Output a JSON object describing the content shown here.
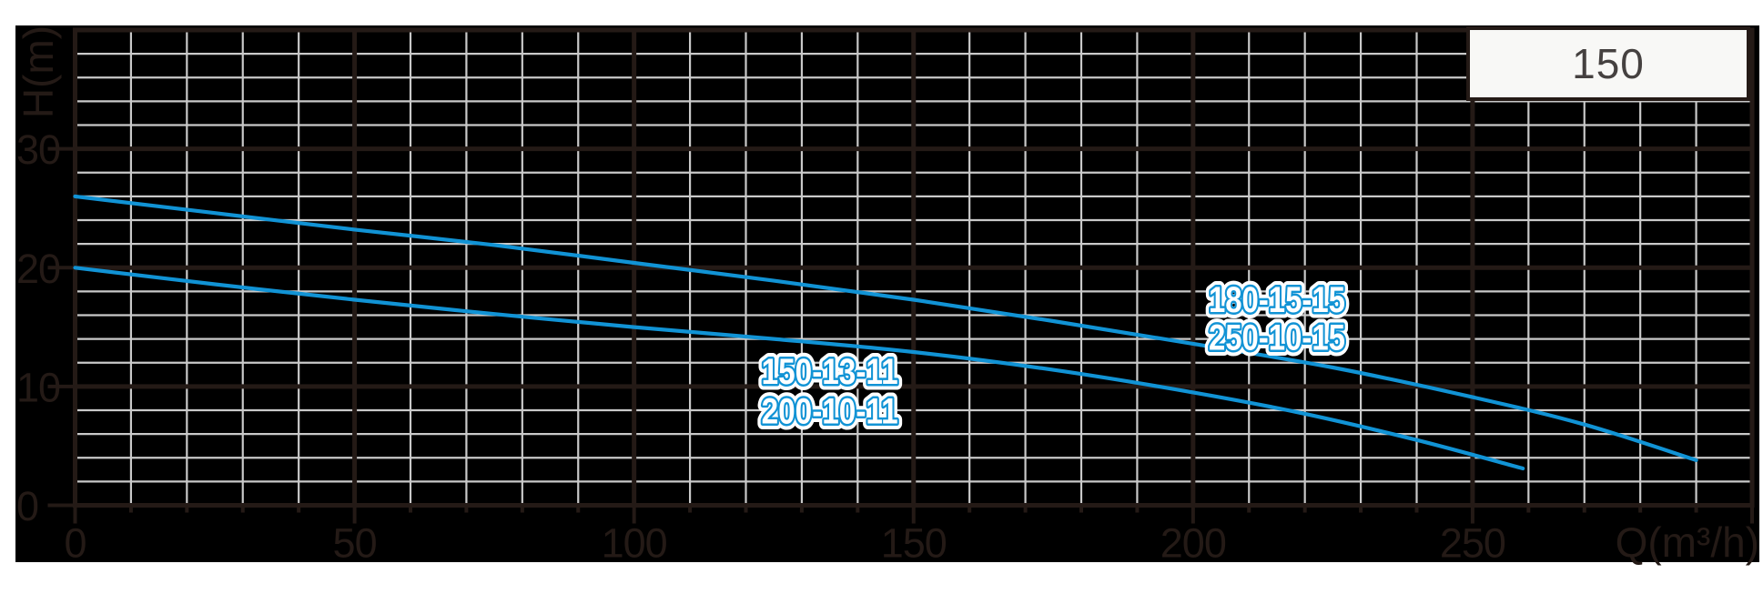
{
  "title_box": {
    "label": "150"
  },
  "axes": {
    "x": {
      "label": "Q(m³/h)",
      "tick_labels": [
        "0",
        "50",
        "100",
        "150",
        "200",
        "250"
      ],
      "tick_values": [
        0,
        50,
        100,
        150,
        200,
        250
      ],
      "range": [
        0,
        300
      ],
      "minor_step": 10,
      "major_step": 50
    },
    "y": {
      "label": "H(m)",
      "tick_labels": [
        "30",
        "20",
        "10",
        "0"
      ],
      "tick_values": [
        30,
        20,
        10,
        0
      ],
      "range": [
        0,
        40
      ],
      "minor_step": 2,
      "major_step": 10
    }
  },
  "chart_data": {
    "type": "line",
    "title": "",
    "xlabel": "Q(m³/h)",
    "ylabel": "H(m)",
    "xlim": [
      0,
      300
    ],
    "ylim": [
      0,
      40
    ],
    "grid": {
      "minor_x": 10,
      "minor_y": 2,
      "major_x": 50,
      "major_y": 10,
      "style": "grey minor grid and dark major grid on black panel"
    },
    "series": [
      {
        "name": "180-15-15 / 250-10-15",
        "models": [
          "180-15-15",
          "250-10-15"
        ],
        "points": [
          [
            0,
            26.0
          ],
          [
            25,
            24.6
          ],
          [
            50,
            23.2
          ],
          [
            75,
            21.9
          ],
          [
            100,
            20.4
          ],
          [
            125,
            18.9
          ],
          [
            150,
            17.3
          ],
          [
            175,
            15.5
          ],
          [
            200,
            13.6
          ],
          [
            225,
            11.6
          ],
          [
            250,
            9.1
          ],
          [
            270,
            6.8
          ],
          [
            290,
            3.8
          ]
        ]
      },
      {
        "name": "150-13-11 / 200-10-11",
        "models": [
          "150-13-11",
          "200-10-11"
        ],
        "points": [
          [
            0,
            20.0
          ],
          [
            25,
            18.6
          ],
          [
            50,
            17.3
          ],
          [
            75,
            16.1
          ],
          [
            100,
            15.0
          ],
          [
            125,
            14.0
          ],
          [
            150,
            12.9
          ],
          [
            175,
            11.4
          ],
          [
            200,
            9.5
          ],
          [
            220,
            7.7
          ],
          [
            240,
            5.5
          ],
          [
            259,
            3.1
          ]
        ]
      }
    ],
    "annotations": [
      {
        "q": 215,
        "lines": [
          {
            "text": "180-15-15",
            "h": 17.25
          },
          {
            "text": "250-10-15",
            "h": 14.1
          }
        ]
      },
      {
        "q": 135,
        "lines": [
          {
            "text": "150-13-11",
            "h": 11.2
          },
          {
            "text": "200-10-11",
            "h": 7.9
          }
        ]
      }
    ],
    "legend_position": "none"
  },
  "colors": {
    "background": "#ffffff",
    "panel": "#000000",
    "grid_minor": "#c9c9c9",
    "grid_major": "#241a16",
    "frame": "#241a16",
    "tick_text": "#241a16",
    "curve": "#1193d5",
    "curve_label_fill": "#ffffff",
    "curve_label_outline": "#1193d5",
    "box_background": "#f8f8f6",
    "box_border": "#241a16",
    "box_text": "#454140"
  }
}
